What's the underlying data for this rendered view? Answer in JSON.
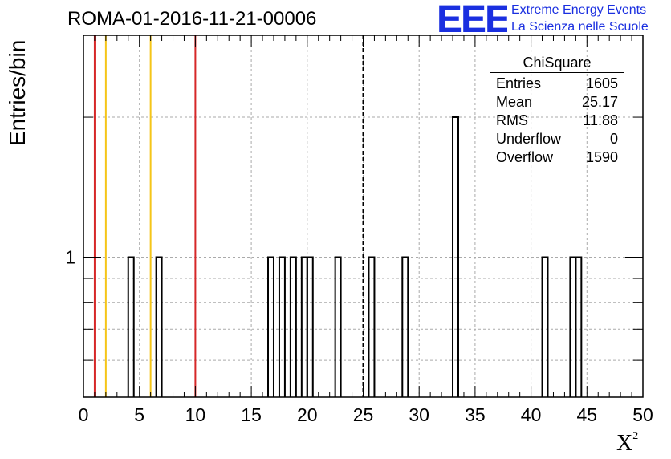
{
  "header": {
    "title": "ROMA-01-2016-11-21-00006",
    "logo_text": "EEE",
    "org_line1": "Extreme Energy Events",
    "org_line2": "La Scienza nelle Scuole"
  },
  "stats": {
    "name": "ChiSquare",
    "rows": [
      {
        "label": "Entries",
        "value": "1605"
      },
      {
        "label": "Mean",
        "value": "25.17"
      },
      {
        "label": "RMS",
        "value": "11.88"
      },
      {
        "label": "Underflow",
        "value": "0"
      },
      {
        "label": "Overflow",
        "value": "1590"
      }
    ]
  },
  "chart_data": {
    "type": "bar",
    "histogram": true,
    "ylabel": "Entries/bin",
    "xlabel": "X",
    "xlabel_sup": "2",
    "xlim": [
      0,
      50
    ],
    "ylog": true,
    "ylim": [
      0.5,
      3.0
    ],
    "grid": true,
    "x_ticks": [
      0,
      5,
      10,
      15,
      20,
      25,
      30,
      35,
      40,
      45,
      50
    ],
    "y_tick_labels": [
      {
        "value": 1,
        "label": "1"
      }
    ],
    "bin_width": 0.5,
    "bins": [
      {
        "x0": 4.0,
        "count": 1
      },
      {
        "x0": 6.5,
        "count": 1
      },
      {
        "x0": 16.5,
        "count": 1
      },
      {
        "x0": 17.5,
        "count": 1
      },
      {
        "x0": 18.5,
        "count": 1
      },
      {
        "x0": 19.5,
        "count": 1
      },
      {
        "x0": 20.0,
        "count": 1
      },
      {
        "x0": 22.5,
        "count": 1
      },
      {
        "x0": 25.5,
        "count": 1
      },
      {
        "x0": 28.5,
        "count": 1
      },
      {
        "x0": 33.0,
        "count": 2
      },
      {
        "x0": 41.0,
        "count": 1
      },
      {
        "x0": 43.5,
        "count": 1
      },
      {
        "x0": 44.0,
        "count": 1
      }
    ],
    "vlines": [
      {
        "x": 1,
        "color": "#d62728",
        "style": "solid"
      },
      {
        "x": 2,
        "color": "#f5c518",
        "style": "solid"
      },
      {
        "x": 6,
        "color": "#f5c518",
        "style": "solid"
      },
      {
        "x": 10,
        "color": "#d62728",
        "style": "solid"
      },
      {
        "x": 25,
        "color": "#000000",
        "style": "dashed"
      }
    ]
  }
}
